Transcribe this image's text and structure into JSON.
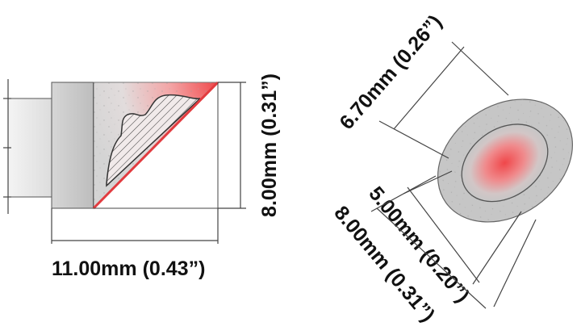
{
  "side_view": {
    "width_label": "11.00mm (0.43”)",
    "height_label": "8.00mm (0.31”)"
  },
  "face_view": {
    "diagonal_label": "6.70mm (0.26”)",
    "inner_label": "5.00mm (0.20”)",
    "outer_label": "8.00mm (0.31”)"
  },
  "colors": {
    "hot_zone": "#f0474a",
    "metal_face": "#c8c8c8",
    "shaft": "#e9e9e9",
    "outline": "#333333"
  }
}
